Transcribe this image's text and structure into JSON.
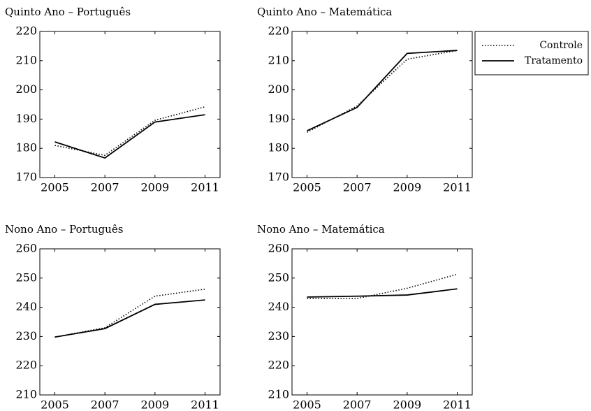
{
  "chart_data": [
    {
      "type": "line",
      "title": "Quinto Ano – Português",
      "x": [
        2005,
        2007,
        2009,
        2011
      ],
      "xlim": [
        2004.4,
        2011.6
      ],
      "xticks": [
        2005,
        2007,
        2009,
        2011
      ],
      "ylim": [
        170,
        220
      ],
      "yticks": [
        170,
        180,
        190,
        200,
        210,
        220
      ],
      "series": [
        {
          "name": "Controle",
          "color": "#000000",
          "linestyle": "dotted",
          "values": [
            181,
            177.6,
            189.6,
            194.2
          ]
        },
        {
          "name": "Tratamento",
          "color": "#000000",
          "linestyle": "solid",
          "values": [
            182.2,
            176.7,
            189,
            191.5
          ]
        }
      ]
    },
    {
      "type": "line",
      "title": "Quinto Ano – Matemática",
      "x": [
        2005,
        2007,
        2009,
        2011
      ],
      "xlim": [
        2004.4,
        2011.6
      ],
      "xticks": [
        2005,
        2007,
        2009,
        2011
      ],
      "ylim": [
        170,
        220
      ],
      "yticks": [
        170,
        180,
        190,
        200,
        210,
        220
      ],
      "legend": "outside-right",
      "series": [
        {
          "name": "Controle",
          "color": "#000000",
          "linestyle": "dotted",
          "values": [
            185.5,
            194.5,
            210.5,
            213.5
          ]
        },
        {
          "name": "Tratamento",
          "color": "#000000",
          "linestyle": "solid",
          "values": [
            186,
            194,
            212.5,
            213.5
          ]
        }
      ]
    },
    {
      "type": "line",
      "title": "Nono Ano – Português",
      "x": [
        2005,
        2007,
        2009,
        2011
      ],
      "xlim": [
        2004.4,
        2011.6
      ],
      "xticks": [
        2005,
        2007,
        2009,
        2011
      ],
      "ylim": [
        210,
        260
      ],
      "yticks": [
        210,
        220,
        230,
        240,
        250,
        260
      ],
      "series": [
        {
          "name": "Controle",
          "color": "#000000",
          "linestyle": "dotted",
          "values": [
            229.8,
            233,
            243.8,
            246.2
          ]
        },
        {
          "name": "Tratamento",
          "color": "#000000",
          "linestyle": "solid",
          "values": [
            229.8,
            232.7,
            241,
            242.5
          ]
        }
      ]
    },
    {
      "type": "line",
      "title": "Nono Ano – Matemática",
      "x": [
        2005,
        2007,
        2009,
        2011
      ],
      "xlim": [
        2004.4,
        2011.6
      ],
      "xticks": [
        2005,
        2007,
        2009,
        2011
      ],
      "ylim": [
        210,
        260
      ],
      "yticks": [
        210,
        220,
        230,
        240,
        250,
        260
      ],
      "series": [
        {
          "name": "Controle",
          "color": "#000000",
          "linestyle": "dotted",
          "values": [
            243,
            243,
            246.5,
            251.3
          ]
        },
        {
          "name": "Tratamento",
          "color": "#000000",
          "linestyle": "solid",
          "values": [
            243.5,
            243.8,
            244.2,
            246.3
          ]
        }
      ]
    }
  ]
}
